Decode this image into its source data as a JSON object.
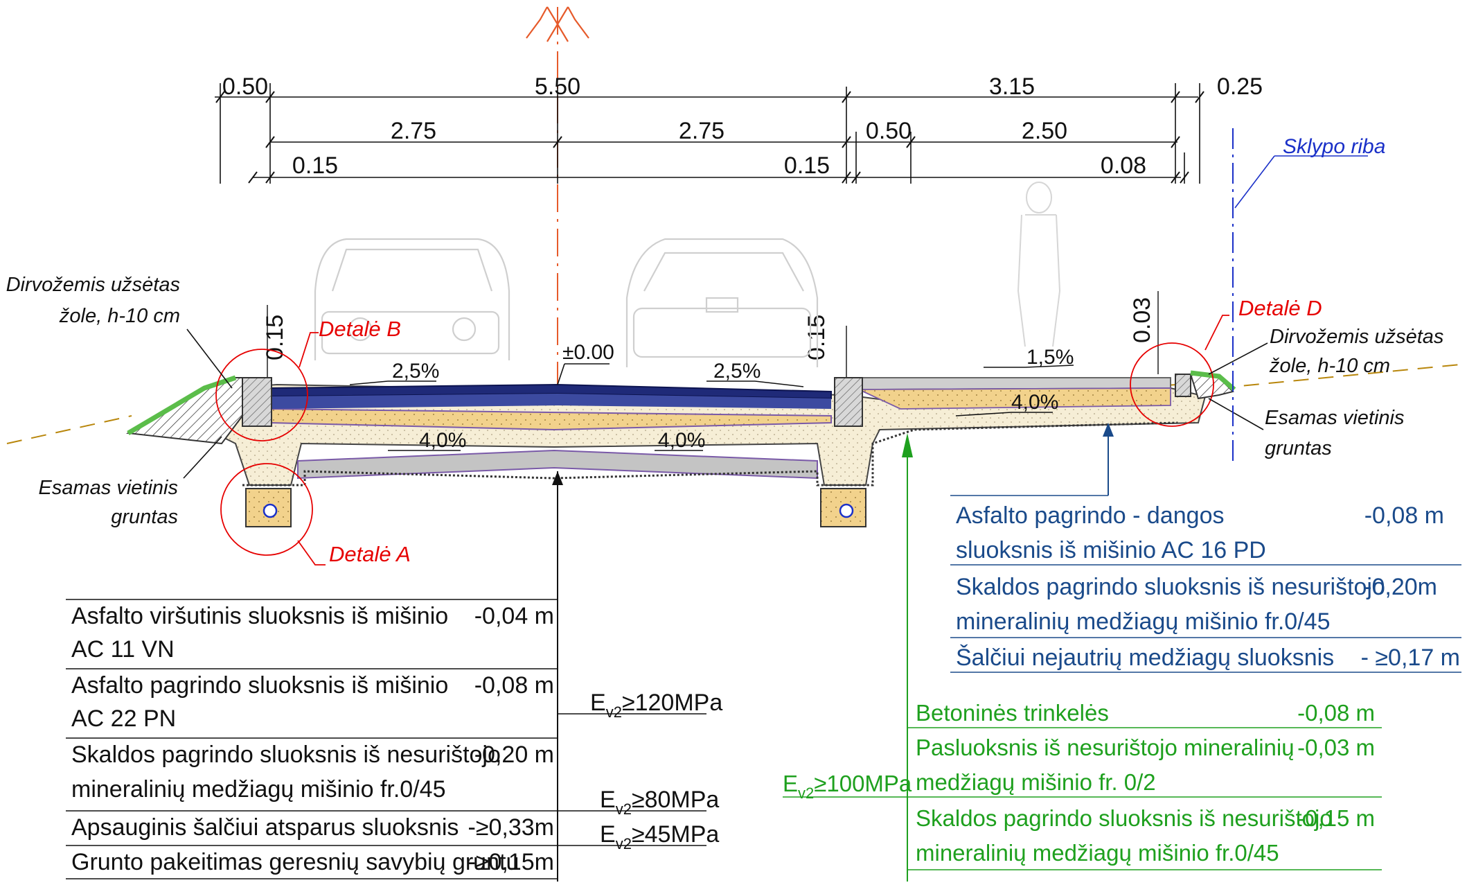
{
  "dimensions": {
    "top": [
      "0.50",
      "5.50",
      "3.15",
      "0.25"
    ],
    "middle": [
      "2.75",
      "2.75",
      "0.50",
      "2.50"
    ],
    "bottom": [
      "0.15",
      "0.15",
      "0.08"
    ],
    "vertical": [
      "0.15",
      "0.15",
      "0.03"
    ]
  },
  "markers": {
    "zero_level": "±0.00",
    "slope_left_top": "2,5%",
    "slope_right_top": "2,5%",
    "slope_walk": "1,5%",
    "slope_base_left": "4,0%",
    "slope_base_mid": "4,0%",
    "slope_base_right": "4,0%"
  },
  "details": {
    "a": "Detalė A",
    "b": "Detalė B",
    "d": "Detalė D"
  },
  "annotations": {
    "topsoil_left_1": "Dirvožemis užsėtas",
    "topsoil_left_2": "žole, h-10 cm",
    "existing_left_1": "Esamas vietinis",
    "existing_left_2": "gruntas",
    "topsoil_right_1": "Dirvožemis užsėtas",
    "topsoil_right_2": "žole, h-10 cm",
    "existing_right_1": "Esamas vietinis",
    "existing_right_2": "gruntas",
    "boundary": "Sklypo riba"
  },
  "road_table": [
    {
      "line1": "Asfalto viršutinis sluoksnis iš mišinio",
      "line2": "AC 11 VN",
      "thickness": "-0,04 m"
    },
    {
      "line1": "Asfalto pagrindo sluoksnis iš mišinio",
      "line2": "AC 22 PN",
      "thickness": "-0,08 m"
    },
    {
      "line1": "Skaldos pagrindo sluoksnis iš nesurištojo",
      "line2": "mineralinių medžiagų mišinio fr.0/45",
      "thickness": "-0,20 m"
    },
    {
      "line1": "Apsauginis šalčiui atsparus sluoksnis",
      "line2": "",
      "thickness": "-≥0,33m"
    },
    {
      "line1": "Grunto pakeitimas geresnių savybių gruntu",
      "line2": "",
      "thickness": "-≥0,15m"
    }
  ],
  "road_modulus": [
    {
      "prefix": "E",
      "sub": "v2",
      "value": "≥120MPa"
    },
    {
      "prefix": "E",
      "sub": "v2",
      "value": "≥80MPa"
    },
    {
      "prefix": "E",
      "sub": "v2",
      "value": "≥45MPa"
    }
  ],
  "blue_table": [
    {
      "line1": "Asfalto pagrindo - dangos",
      "line2": "sluoksnis iš mišinio AC 16 PD",
      "thickness": "-0,08 m"
    },
    {
      "line1": "Skaldos pagrindo sluoksnis iš nesurištojo",
      "line2": "mineralinių medžiagų mišinio fr.0/45",
      "thickness": "-0,20m"
    },
    {
      "line1": "Šalčiui nejautrių medžiagų sluoksnis",
      "line2": "",
      "thickness": "- ≥0,17 m"
    }
  ],
  "green_table": [
    {
      "line1": "Betoninės trinkelės",
      "line2": "",
      "thickness": "-0,08 m"
    },
    {
      "line1": "Pasluoksnis iš nesurištojo mineralinių",
      "line2": "medžiagų mišinio fr. 0/2",
      "thickness": "-0,03 m"
    },
    {
      "line1": "Skaldos pagrindo sluoksnis iš nesurištojo",
      "line2": "mineralinių medžiagų mišinio fr.0/45",
      "thickness": "-0,15 m"
    }
  ],
  "green_modulus": {
    "prefix": "E",
    "sub": "v2",
    "value": "≥100MPa"
  },
  "colors": {
    "asphalt_top": "#1f2a78",
    "base_sand": "#f2d28c",
    "frost_layer": "#f3ebcf",
    "gravel": "#c9c9c9",
    "red": "#e60000",
    "green": "#1ea01e",
    "blue_table": "#1a4a8a",
    "sidewalk_table": "#1ea01e",
    "grass": "#5bbd4a"
  }
}
